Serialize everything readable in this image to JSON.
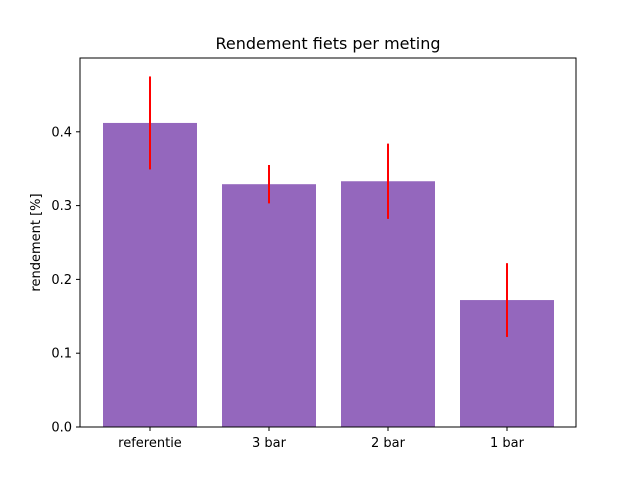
{
  "chart_data": {
    "type": "bar",
    "title": "Rendement fiets per meting",
    "xlabel": "",
    "ylabel": "rendement [%]",
    "categories": [
      "referentie",
      "3 bar",
      "2 bar",
      "1 bar"
    ],
    "values": [
      0.412,
      0.329,
      0.333,
      0.172
    ],
    "errors": [
      0.063,
      0.026,
      0.051,
      0.05
    ],
    "ylim": [
      0,
      0.5
    ],
    "yticks": [
      0.0,
      0.1,
      0.2,
      0.3,
      0.4
    ],
    "ytick_labels": [
      "0.0",
      "0.1",
      "0.2",
      "0.3",
      "0.4"
    ],
    "grid": false,
    "bar_color": "#9467bd",
    "error_color": "#ff0000"
  }
}
